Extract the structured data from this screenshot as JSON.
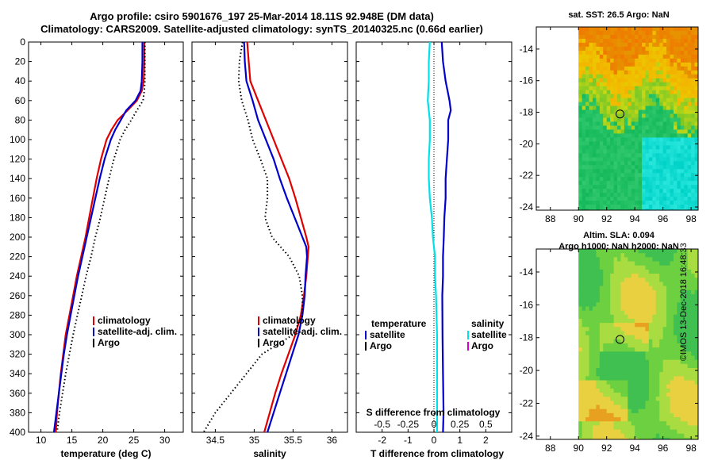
{
  "header": {
    "title_line1": "Argo profile: csiro 5901676_197 25-Mar-2014 18.11S 92.948E (DM data)",
    "title_line2": "Climatology: CARS2009. Satellite-adjusted climatology: synTS_20140325.nc (0.66d earlier)"
  },
  "maps": {
    "sst_title": "sat. SST: 26.5 Argo: NaN",
    "sla_title_line1": "Altim. SLA: 0.094",
    "sla_title_line2": "Argo h1000: NaN h2000: NaN",
    "ylim": [
      -24.2,
      -12.6
    ],
    "xlim": [
      87,
      98.5
    ],
    "yticks": [
      -14,
      -16,
      -18,
      -20,
      -22,
      -24
    ],
    "xticks": [
      88,
      90,
      92,
      94,
      96,
      98
    ],
    "data_lon_min": 90,
    "profile_marker": {
      "lon": 92.948,
      "lat": -18.11
    }
  },
  "credit": "©IMOS 13-Dec-2018 16:48:33",
  "colors": {
    "climatology": "#e00000",
    "satellite_adj": "#0000cc",
    "argo": "#000000",
    "salinity_satellite": "#00e0e8",
    "salinity_argo": "#d000d0"
  },
  "chart_data": [
    {
      "type": "line",
      "name": "temperature",
      "xlabel": "temperature (deg C)",
      "ylabel": "depth",
      "xlim": [
        8,
        33
      ],
      "ylim": [
        400,
        0
      ],
      "xticks": [
        10,
        15,
        20,
        25,
        30
      ],
      "yticks": [
        0,
        20,
        40,
        60,
        80,
        100,
        120,
        140,
        160,
        180,
        200,
        220,
        240,
        260,
        280,
        300,
        320,
        340,
        360,
        380,
        400
      ],
      "legend": [
        "climatology",
        "satellite-adj. clim.",
        "Argo"
      ],
      "series": [
        {
          "name": "climatology",
          "depth": [
            0,
            20,
            40,
            50,
            60,
            70,
            80,
            90,
            100,
            120,
            140,
            160,
            180,
            200,
            220,
            240,
            260,
            280,
            300,
            320,
            340,
            360,
            380,
            400
          ],
          "values": [
            26.7,
            26.7,
            26.6,
            26.3,
            25.5,
            24.0,
            22.4,
            21.4,
            20.6,
            19.7,
            19.0,
            18.4,
            17.8,
            17.2,
            16.5,
            15.8,
            15.2,
            14.6,
            14.0,
            13.6,
            13.2,
            12.9,
            12.6,
            12.4
          ]
        },
        {
          "name": "satellite-adj. clim.",
          "depth": [
            0,
            20,
            40,
            50,
            60,
            70,
            80,
            90,
            100,
            120,
            140,
            160,
            180,
            200,
            220,
            240,
            260,
            280,
            300,
            320,
            340,
            360,
            380,
            400
          ],
          "values": [
            26.4,
            26.4,
            26.3,
            26.1,
            25.3,
            23.8,
            22.9,
            22.0,
            21.3,
            20.3,
            19.5,
            18.8,
            18.1,
            17.4,
            16.7,
            16.0,
            15.4,
            14.8,
            14.2,
            13.7,
            13.3,
            12.9,
            12.5,
            12.1
          ]
        },
        {
          "name": "Argo",
          "depth": [
            0,
            20,
            40,
            50,
            60,
            70,
            80,
            90,
            100,
            120,
            140,
            160,
            180,
            200,
            220,
            240,
            260,
            280,
            300,
            320,
            340,
            360,
            380,
            400
          ],
          "values": [
            26.8,
            26.8,
            26.8,
            26.7,
            26.5,
            25.5,
            24.6,
            23.6,
            22.8,
            21.8,
            21.0,
            20.3,
            19.6,
            18.8,
            18.1,
            17.3,
            16.6,
            15.9,
            15.2,
            14.6,
            14.0,
            13.5,
            13.0,
            12.6
          ]
        }
      ]
    },
    {
      "type": "line",
      "name": "salinity",
      "xlabel": "salinity",
      "ylabel": "depth",
      "xlim": [
        34.2,
        36.2
      ],
      "ylim": [
        400,
        0
      ],
      "xticks": [
        34.5,
        35,
        35.5,
        36
      ],
      "legend": [
        "climatology",
        "satellite-adj. clim.",
        "Argo"
      ],
      "series": [
        {
          "name": "climatology",
          "depth": [
            0,
            20,
            40,
            60,
            80,
            100,
            120,
            140,
            160,
            180,
            200,
            210,
            220,
            240,
            260,
            280,
            300,
            320,
            340,
            360,
            380,
            400
          ],
          "values": [
            34.91,
            34.93,
            34.95,
            35.05,
            35.15,
            35.25,
            35.35,
            35.45,
            35.53,
            35.6,
            35.67,
            35.7,
            35.69,
            35.67,
            35.64,
            35.6,
            35.53,
            35.44,
            35.35,
            35.27,
            35.2,
            35.13
          ]
        },
        {
          "name": "satellite-adj. clim.",
          "depth": [
            0,
            20,
            40,
            60,
            80,
            100,
            120,
            140,
            160,
            180,
            200,
            210,
            220,
            240,
            260,
            280,
            300,
            320,
            340,
            360,
            380,
            400
          ],
          "values": [
            34.87,
            34.88,
            34.9,
            34.98,
            35.05,
            35.15,
            35.25,
            35.33,
            35.42,
            35.52,
            35.62,
            35.67,
            35.68,
            35.66,
            35.65,
            35.62,
            35.57,
            35.49,
            35.41,
            35.33,
            35.25,
            35.17
          ]
        },
        {
          "name": "Argo",
          "depth": [
            0,
            20,
            40,
            60,
            80,
            100,
            120,
            140,
            160,
            180,
            200,
            220,
            240,
            260,
            280,
            300,
            320,
            340,
            360,
            380,
            400
          ],
          "values": [
            34.85,
            34.81,
            34.8,
            34.84,
            34.92,
            34.98,
            35.08,
            35.17,
            35.17,
            35.14,
            35.23,
            35.45,
            35.58,
            35.62,
            35.62,
            35.5,
            35.1,
            34.9,
            34.7,
            34.5,
            34.35
          ]
        }
      ]
    },
    {
      "type": "line",
      "name": "difference",
      "xlabel": "T difference from climatology",
      "x2label": "S difference from climatology",
      "ylabel": "depth",
      "xlim": [
        -3,
        3
      ],
      "x2lim": [
        -0.75,
        0.75
      ],
      "ylim": [
        400,
        0
      ],
      "xticks": [
        -2,
        -1,
        0,
        1,
        2
      ],
      "x2ticks": [
        -0.5,
        -0.25,
        0,
        0.25,
        0.5
      ],
      "legend_temperature_heading": "temperature",
      "legend_salinity_heading": "salinity",
      "legend_temperature": [
        "satellite",
        "Argo"
      ],
      "legend_salinity": [
        "satellite",
        "Argo"
      ],
      "series": [
        {
          "name": "temperature satellite",
          "depth": [
            0,
            20,
            40,
            60,
            70,
            80,
            100,
            120,
            140,
            160,
            180,
            200,
            220,
            240,
            260,
            300,
            340,
            380,
            400
          ],
          "values": [
            0.3,
            0.35,
            0.45,
            0.6,
            0.65,
            0.55,
            0.55,
            0.5,
            0.45,
            0.45,
            0.4,
            0.38,
            0.35,
            0.35,
            0.32,
            0.33,
            0.35,
            0.37,
            0.35
          ]
        },
        {
          "name": "salinity satellite",
          "depth": [
            0,
            20,
            40,
            60,
            80,
            100,
            120,
            140,
            160,
            180,
            200,
            220,
            240,
            260,
            300,
            340,
            380,
            400
          ],
          "values": [
            -0.04,
            -0.05,
            -0.05,
            -0.06,
            -0.04,
            -0.04,
            -0.05,
            -0.05,
            -0.04,
            -0.02,
            -0.01,
            0.01,
            0.01,
            0.02,
            0.03,
            0.03,
            0.03,
            0.03
          ]
        }
      ]
    }
  ]
}
